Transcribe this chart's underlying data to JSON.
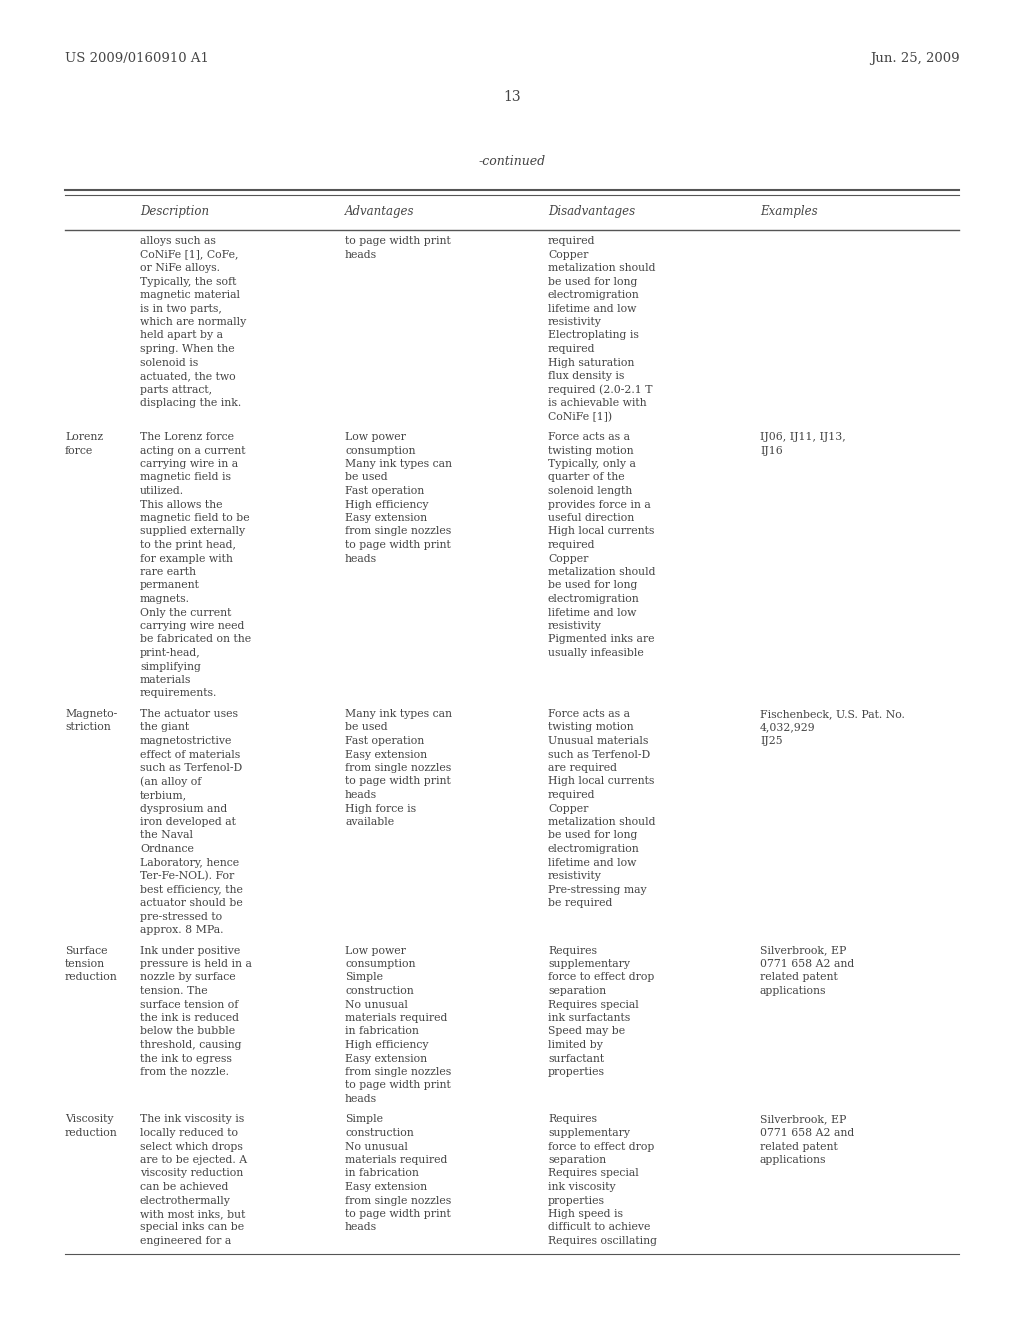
{
  "page_header_left": "US 2009/0160910 A1",
  "page_header_right": "Jun. 25, 2009",
  "page_number": "13",
  "table_title": "-continued",
  "background_color": "#ffffff",
  "text_color": "#444444",
  "col_headers": [
    "Description",
    "Advantages",
    "Disadvantages",
    "Examples"
  ],
  "rows": [
    {
      "label": "",
      "description": "alloys such as\nCoNiFe [1], CoFe,\nor NiFe alloys.\nTypically, the soft\nmagnetic material\nis in two parts,\nwhich are normally\nheld apart by a\nspring. When the\nsolenoid is\nactuated, the two\nparts attract,\ndisplacing the ink.",
      "advantages": "to page width print\nheads",
      "disadvantages": "required\nCopper\nmetalization should\nbe used for long\nelectromigration\nlifetime and low\nresistivity\nElectroplating is\nrequired\nHigh saturation\nflux density is\nrequired (2.0-2.1 T\nis achievable with\nCoNiFe [1])",
      "examples": ""
    },
    {
      "label": "Lorenz\nforce",
      "description": "The Lorenz force\nacting on a current\ncarrying wire in a\nmagnetic field is\nutilized.\nThis allows the\nmagnetic field to be\nsupplied externally\nto the print head,\nfor example with\nrare earth\npermanent\nmagnets.\nOnly the current\ncarrying wire need\nbe fabricated on the\nprint-head,\nsimplifying\nmaterials\nrequirements.",
      "advantages": "Low power\nconsumption\nMany ink types can\nbe used\nFast operation\nHigh efficiency\nEasy extension\nfrom single nozzles\nto page width print\nheads",
      "disadvantages": "Force acts as a\ntwisting motion\nTypically, only a\nquarter of the\nsolenoid length\nprovides force in a\nuseful direction\nHigh local currents\nrequired\nCopper\nmetalization should\nbe used for long\nelectromigration\nlifetime and low\nresistivity\nPigmented inks are\nusually infeasible",
      "examples": "IJ06, IJ11, IJ13,\nIJ16"
    },
    {
      "label": "Magneto-\nstriction",
      "description": "The actuator uses\nthe giant\nmagnetostrictive\neffect of materials\nsuch as Terfenol-D\n(an alloy of\nterbium,\ndysprosium and\niron developed at\nthe Naval\nOrdnance\nLaboratory, hence\nTer-Fe-NOL). For\nbest efficiency, the\nactuator should be\npre-stressed to\napprox. 8 MPa.",
      "advantages": "Many ink types can\nbe used\nFast operation\nEasy extension\nfrom single nozzles\nto page width print\nheads\nHigh force is\navailable",
      "disadvantages": "Force acts as a\ntwisting motion\nUnusual materials\nsuch as Terfenol-D\nare required\nHigh local currents\nrequired\nCopper\nmetalization should\nbe used for long\nelectromigration\nlifetime and low\nresistivity\nPre-stressing may\nbe required",
      "examples": "Fischenbeck, U.S. Pat. No.\n4,032,929\nIJ25"
    },
    {
      "label": "Surface\ntension\nreduction",
      "description": "Ink under positive\npressure is held in a\nnozzle by surface\ntension. The\nsurface tension of\nthe ink is reduced\nbelow the bubble\nthreshold, causing\nthe ink to egress\nfrom the nozzle.",
      "advantages": "Low power\nconsumption\nSimple\nconstruction\nNo unusual\nmaterials required\nin fabrication\nHigh efficiency\nEasy extension\nfrom single nozzles\nto page width print\nheads",
      "disadvantages": "Requires\nsupplementary\nforce to effect drop\nseparation\nRequires special\nink surfactants\nSpeed may be\nlimited by\nsurfactant\nproperties",
      "examples": "Silverbrook, EP\n0771 658 A2 and\nrelated patent\napplications"
    },
    {
      "label": "Viscosity\nreduction",
      "description": "The ink viscosity is\nlocally reduced to\nselect which drops\nare to be ejected. A\nviscosity reduction\ncan be achieved\nelectrothermally\nwith most inks, but\nspecial inks can be\nengineered for a",
      "advantages": "Simple\nconstruction\nNo unusual\nmaterials required\nin fabrication\nEasy extension\nfrom single nozzles\nto page width print\nheads",
      "disadvantages": "Requires\nsupplementary\nforce to effect drop\nseparation\nRequires special\nink viscosity\nproperties\nHigh speed is\ndifficult to achieve\nRequires oscillating",
      "examples": "Silverbrook, EP\n0771 658 A2 and\nrelated patent\napplications"
    }
  ]
}
